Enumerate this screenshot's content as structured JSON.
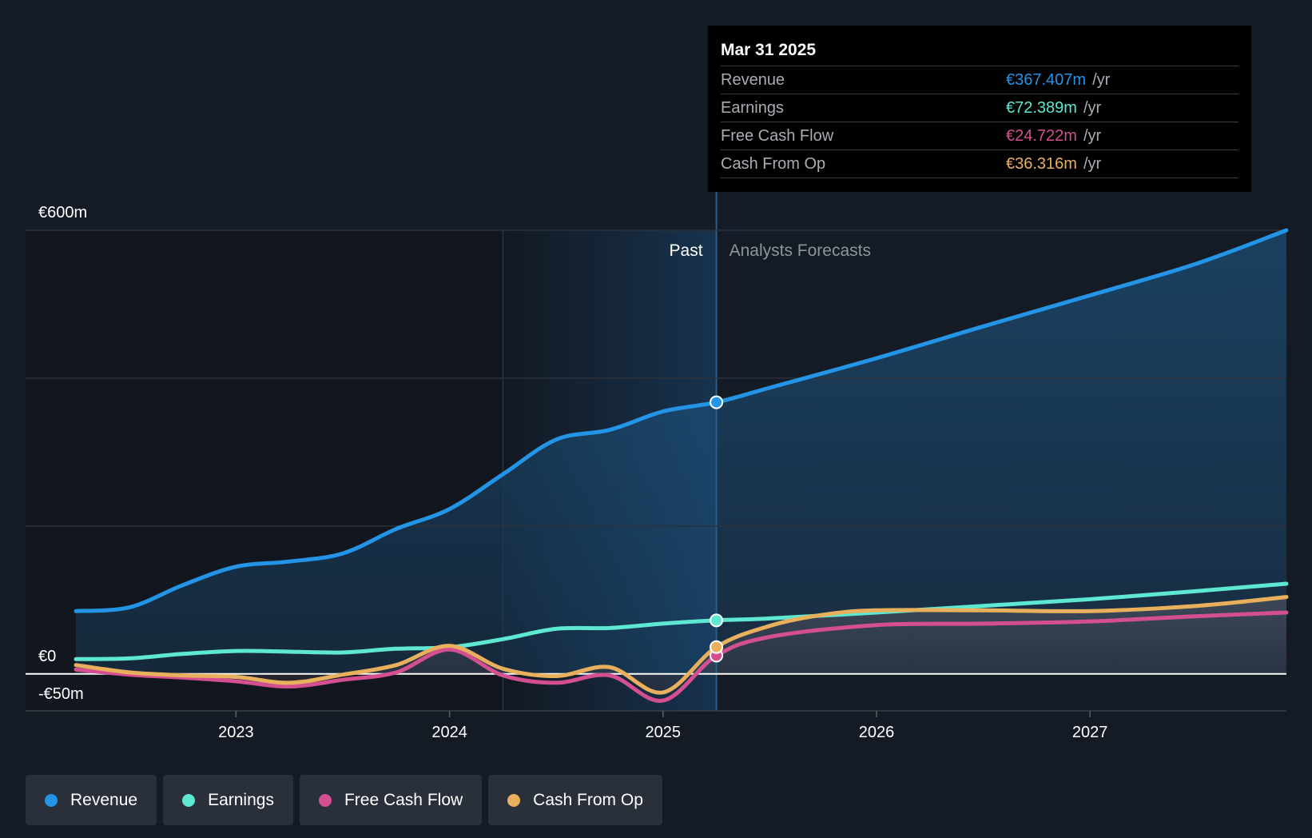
{
  "chart_data": {
    "type": "line",
    "y_unit": "€",
    "ylim": [
      -50,
      600
    ],
    "y_ticks": [
      {
        "value": 600,
        "label": "€600m"
      },
      {
        "value": 0,
        "label": "€0"
      },
      {
        "value": -50,
        "label": "-€50m"
      }
    ],
    "x_range": [
      2022.25,
      2027.92
    ],
    "x_ticks": [
      {
        "value": 2023,
        "label": "2023"
      },
      {
        "value": 2024,
        "label": "2024"
      },
      {
        "value": 2025,
        "label": "2025"
      },
      {
        "value": 2026,
        "label": "2026"
      },
      {
        "value": 2027,
        "label": "2027"
      }
    ],
    "grid": true,
    "past_divider_x": 2025.25,
    "highlight_start_x": 2024.25,
    "region_labels": {
      "past": "Past",
      "forecast": "Analysts Forecasts"
    },
    "series": [
      {
        "name": "Revenue",
        "color": "#2394e6",
        "fill": true,
        "points": [
          [
            2022.25,
            85
          ],
          [
            2022.5,
            90
          ],
          [
            2022.75,
            120
          ],
          [
            2023.0,
            145
          ],
          [
            2023.25,
            152
          ],
          [
            2023.5,
            163
          ],
          [
            2023.75,
            196
          ],
          [
            2024.0,
            223
          ],
          [
            2024.25,
            270
          ],
          [
            2024.5,
            317
          ],
          [
            2024.75,
            330
          ],
          [
            2025.0,
            355
          ],
          [
            2025.25,
            367.4
          ],
          [
            2025.5,
            387
          ],
          [
            2026.0,
            427
          ],
          [
            2026.5,
            470
          ],
          [
            2027.0,
            512
          ],
          [
            2027.5,
            555
          ],
          [
            2027.92,
            600
          ]
        ]
      },
      {
        "name": "Earnings",
        "color": "#5ee8d1",
        "fill": false,
        "points": [
          [
            2022.25,
            20
          ],
          [
            2022.5,
            21
          ],
          [
            2022.75,
            27
          ],
          [
            2023.0,
            31
          ],
          [
            2023.25,
            30
          ],
          [
            2023.5,
            29
          ],
          [
            2023.75,
            34
          ],
          [
            2024.0,
            36
          ],
          [
            2024.25,
            47
          ],
          [
            2024.5,
            61
          ],
          [
            2024.75,
            62
          ],
          [
            2025.0,
            68
          ],
          [
            2025.25,
            72.4
          ],
          [
            2025.5,
            75
          ],
          [
            2026.0,
            83
          ],
          [
            2026.5,
            92
          ],
          [
            2027.0,
            101
          ],
          [
            2027.5,
            112
          ],
          [
            2027.92,
            122
          ]
        ]
      },
      {
        "name": "Free Cash Flow",
        "color": "#d44f90",
        "fill": false,
        "points": [
          [
            2022.25,
            6
          ],
          [
            2022.5,
            -1
          ],
          [
            2022.75,
            -5
          ],
          [
            2023.0,
            -10
          ],
          [
            2023.25,
            -17
          ],
          [
            2023.5,
            -8
          ],
          [
            2023.75,
            2
          ],
          [
            2024.0,
            33
          ],
          [
            2024.25,
            -2
          ],
          [
            2024.5,
            -12
          ],
          [
            2024.75,
            -2
          ],
          [
            2025.0,
            -36
          ],
          [
            2025.25,
            24.7
          ],
          [
            2025.5,
            50
          ],
          [
            2026.0,
            66
          ],
          [
            2026.5,
            68
          ],
          [
            2027.0,
            71
          ],
          [
            2027.5,
            78
          ],
          [
            2027.92,
            83
          ]
        ]
      },
      {
        "name": "Cash From Op",
        "color": "#e8b05d",
        "fill": false,
        "points": [
          [
            2022.25,
            12
          ],
          [
            2022.5,
            2
          ],
          [
            2022.75,
            -2
          ],
          [
            2023.0,
            -4
          ],
          [
            2023.25,
            -12
          ],
          [
            2023.5,
            -1
          ],
          [
            2023.75,
            12
          ],
          [
            2024.0,
            38
          ],
          [
            2024.25,
            7
          ],
          [
            2024.5,
            -3
          ],
          [
            2024.75,
            9
          ],
          [
            2025.0,
            -25
          ],
          [
            2025.25,
            36.3
          ],
          [
            2025.5,
            65
          ],
          [
            2025.75,
            80
          ],
          [
            2026.0,
            86
          ],
          [
            2026.5,
            86
          ],
          [
            2027.0,
            85
          ],
          [
            2027.5,
            92
          ],
          [
            2027.92,
            104
          ]
        ]
      }
    ]
  },
  "tooltip": {
    "date": "Mar 31 2025",
    "rows": [
      {
        "name": "Revenue",
        "value": "€367.407m",
        "unit": "/yr",
        "color": "#2394e6"
      },
      {
        "name": "Earnings",
        "value": "€72.389m",
        "unit": "/yr",
        "color": "#5ee8d1"
      },
      {
        "name": "Free Cash Flow",
        "value": "€24.722m",
        "unit": "/yr",
        "color": "#d44f90"
      },
      {
        "name": "Cash From Op",
        "value": "€36.316m",
        "unit": "/yr",
        "color": "#e8b05d"
      }
    ]
  },
  "legend": [
    {
      "label": "Revenue",
      "color": "#2394e6"
    },
    {
      "label": "Earnings",
      "color": "#5ee8d1"
    },
    {
      "label": "Free Cash Flow",
      "color": "#d44f90"
    },
    {
      "label": "Cash From Op",
      "color": "#e8b05d"
    }
  ]
}
